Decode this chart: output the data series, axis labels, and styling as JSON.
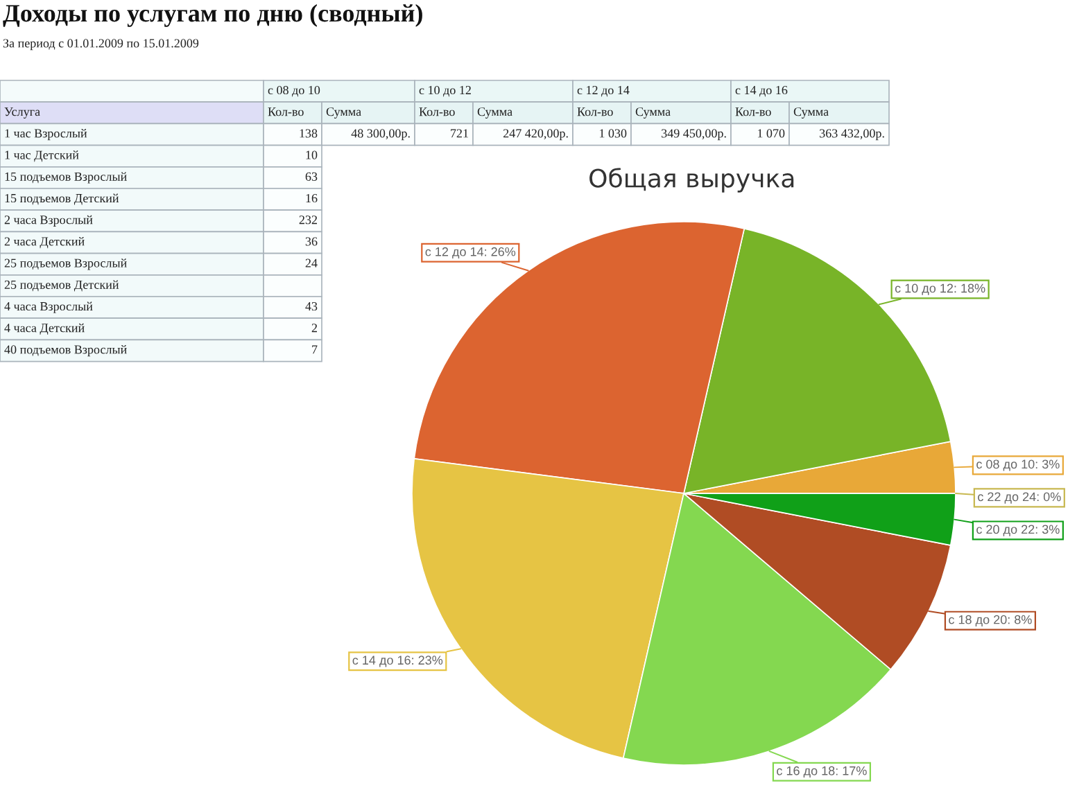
{
  "chart_data": [
    {
      "type": "other",
      "title": "Доходы по услугам по дню (сводный)",
      "subtitle": "За период с 01.01.2009 по 15.01.2009",
      "ylabel": "Услуга",
      "annotations": [
        "с 08 до 10",
        "с 10 до 12",
        "с 12 до 14",
        "с 14 до 16"
      ],
      "categories": [
        "Кол-во",
        "Сумма",
        "Кол-во",
        "Сумма",
        "Кол-во",
        "Сумма",
        "Кол-во",
        "Сумма"
      ],
      "y_categories": [
        "1 час Взрослый",
        "1 час Детский",
        "15 подъемов Взрослый",
        "15 подъемов Детский",
        "2 часа Взрослый",
        "2 часа Детский",
        "25 подъемов Взрослый",
        "25 подъемов Детский",
        "4 часа Взрослый",
        "4 часа Детский",
        "40 подъемов Взрослый"
      ],
      "cell_labels": [
        [
          "138",
          "48 300,00р.",
          "721",
          "247 420,00р.",
          "1 030",
          "349 450,00р.",
          "1 070",
          "363 432,00р."
        ],
        [
          "10",
          null,
          null,
          null,
          null,
          null,
          null,
          null
        ],
        [
          "63",
          null,
          null,
          null,
          null,
          null,
          null,
          null
        ],
        [
          "16",
          null,
          null,
          null,
          null,
          null,
          null,
          null
        ],
        [
          "232",
          null,
          null,
          null,
          null,
          null,
          null,
          null
        ],
        [
          "36",
          null,
          null,
          null,
          null,
          null,
          null,
          null
        ],
        [
          "24",
          null,
          null,
          null,
          null,
          null,
          null,
          null
        ],
        [
          null,
          null,
          null,
          null,
          null,
          null,
          null,
          null
        ],
        [
          "43",
          null,
          null,
          null,
          null,
          null,
          null,
          null
        ],
        [
          "2",
          null,
          null,
          null,
          null,
          null,
          null,
          null
        ],
        [
          "7",
          null,
          null,
          null,
          null,
          null,
          null,
          null
        ]
      ]
    },
    {
      "type": "pie",
      "title": "Общая выручка",
      "categories": [
        "с 08 до 10: 3%",
        "с 10 до 12: 18%",
        "с 12 до 14: 26%",
        "с 14 до 16: 23%",
        "с 16 до 18: 17%",
        "с 18 до 20: 8%",
        "с 20 до 22: 3%",
        "с 22 до 24: 0%"
      ],
      "values": [
        3,
        18,
        26,
        23,
        17,
        8,
        3,
        0
      ],
      "colors": [
        "#e8a838",
        "#78b428",
        "#dc6430",
        "#e6c444",
        "#84d850",
        "#b04c24",
        "#10a018",
        "#c8b850"
      ]
    }
  ]
}
